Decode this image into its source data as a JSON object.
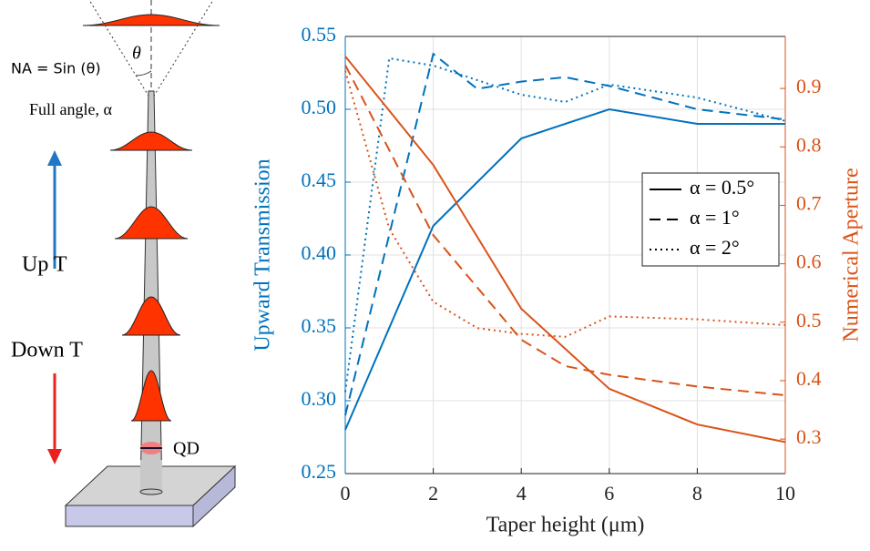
{
  "diagram": {
    "na_label": "NA = Sin (θ)",
    "theta": "θ",
    "full_angle": "Full angle, α",
    "up": "Up T",
    "down": "Down T",
    "qd": "QD"
  },
  "chart_data": {
    "type": "line",
    "xlabel": "Taper height (μm)",
    "ylabel": "Upward Transmission",
    "y2label": "Numerical Aperture",
    "xlim": [
      0,
      10
    ],
    "xticks": [
      0,
      2,
      4,
      6,
      8,
      10
    ],
    "ylim": [
      0.25,
      0.55
    ],
    "yticks": [
      0.25,
      {
        "value": 0.3,
        "label": "0.30"
      },
      0.35,
      {
        "value": 0.4,
        "label": "0.40"
      },
      0.45,
      {
        "value": 0.5,
        "label": "0.50"
      },
      0.55
    ],
    "y2lim": [
      0.241,
      0.989
    ],
    "y2ticks": [
      0.3,
      0.4,
      0.5,
      0.6,
      0.7,
      0.8,
      0.9
    ],
    "grid": true,
    "color": "#0072bd",
    "y2color": "#d95319",
    "legend_color": "#000000",
    "legend": "right",
    "series": [
      {
        "name": "α = 0.5°",
        "dash": "solid",
        "x": [
          0,
          2,
          4,
          6,
          8,
          10
        ],
        "values": [
          0.28,
          0.42,
          0.48,
          0.5,
          0.49,
          0.49
        ]
      },
      {
        "name": "α = 1°",
        "dash": "dashed",
        "x": [
          0,
          2,
          3,
          4,
          5,
          6,
          8,
          10
        ],
        "values": [
          0.29,
          0.538,
          0.514,
          0.519,
          0.522,
          0.516,
          0.5,
          0.493
        ]
      },
      {
        "name": "α = 2°",
        "dash": "dotted",
        "x": [
          0,
          1,
          2,
          4,
          5,
          6,
          8,
          10
        ],
        "values": [
          0.306,
          0.535,
          0.53,
          0.51,
          0.505,
          0.517,
          0.508,
          0.492
        ]
      }
    ],
    "y2_series": [
      {
        "dash": "solid",
        "axis": "y2",
        "x": [
          0,
          2,
          4,
          6,
          8,
          10
        ],
        "values": [
          0.955,
          0.769,
          0.523,
          0.386,
          0.325,
          0.295
        ]
      },
      {
        "dash": "dashed",
        "axis": "y2",
        "x": [
          0,
          2,
          4,
          5,
          6,
          8,
          10
        ],
        "values": [
          0.94,
          0.649,
          0.47,
          0.425,
          0.41,
          0.39,
          0.375
        ]
      },
      {
        "dash": "dotted",
        "axis": "y2",
        "x": [
          0,
          1,
          2,
          3,
          4,
          5,
          6,
          8,
          10
        ],
        "values": [
          0.93,
          0.66,
          0.535,
          0.49,
          0.48,
          0.475,
          0.51,
          0.505,
          0.495
        ]
      }
    ]
  }
}
